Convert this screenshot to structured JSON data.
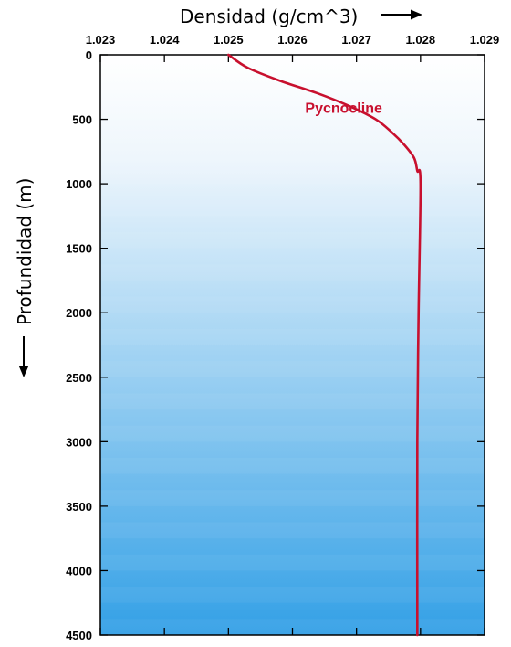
{
  "chart_data": {
    "type": "line",
    "xlabel": "Densidad (g/cm^3)",
    "ylabel": "Profundidad (m)",
    "x_ticks": [
      "1.023",
      "1.024",
      "1.025",
      "1.026",
      "1.027",
      "1.028",
      "1.029"
    ],
    "y_ticks": [
      "0",
      "500",
      "1000",
      "1500",
      "2000",
      "2500",
      "3000",
      "3500",
      "4000",
      "4500"
    ],
    "xlim": [
      1.023,
      1.029
    ],
    "ylim": [
      0,
      4500
    ],
    "y_inverted": true,
    "x_axis_position": "top",
    "grid": false,
    "series": [
      {
        "color": "#c8102e",
        "points": [
          {
            "x": 1.025,
            "y": 0
          },
          {
            "x": 1.0253,
            "y": 100
          },
          {
            "x": 1.0258,
            "y": 200
          },
          {
            "x": 1.0264,
            "y": 300
          },
          {
            "x": 1.0269,
            "y": 400
          },
          {
            "x": 1.0273,
            "y": 500
          },
          {
            "x": 1.02755,
            "y": 600
          },
          {
            "x": 1.02775,
            "y": 700
          },
          {
            "x": 1.0279,
            "y": 800
          },
          {
            "x": 1.02795,
            "y": 900
          },
          {
            "x": 1.028,
            "y": 1000
          },
          {
            "x": 1.02797,
            "y": 2000
          },
          {
            "x": 1.02795,
            "y": 3000
          },
          {
            "x": 1.02795,
            "y": 4500
          }
        ]
      }
    ],
    "annotations": [
      {
        "text": "Pycnocline",
        "x": 1.0268,
        "y": 450,
        "color": "#c8102e"
      }
    ],
    "background": {
      "gradient_top": "#ffffff",
      "gradient_bottom": "#33a0e6"
    }
  }
}
